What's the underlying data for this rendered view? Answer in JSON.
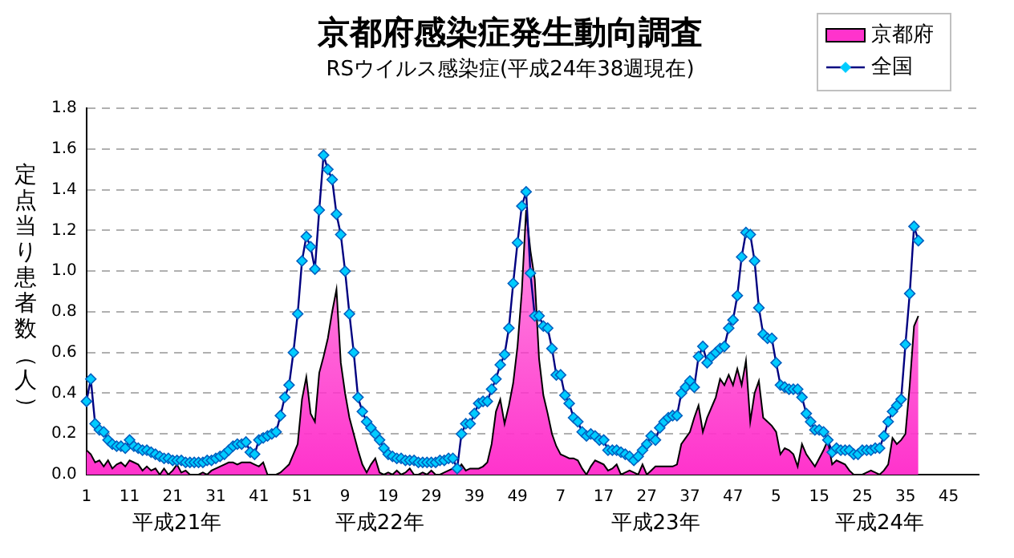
{
  "chart_data": {
    "type": "area",
    "title": "京都府感染症発生動向調査",
    "subtitle": "RSウイルス感染症(平成24年38週現在)",
    "ylabel": "定点当り患者数（人）",
    "categories": [
      "1",
      null,
      null,
      null,
      null,
      null,
      null,
      null,
      null,
      null,
      "11",
      null,
      null,
      null,
      null,
      null,
      null,
      null,
      null,
      null,
      "21",
      null,
      null,
      null,
      null,
      null,
      null,
      null,
      null,
      null,
      "31",
      null,
      null,
      null,
      null,
      null,
      null,
      null,
      null,
      null,
      "41",
      null,
      null,
      null,
      null,
      null,
      null,
      null,
      null,
      null,
      "51",
      null,
      null,
      null,
      null,
      null,
      null,
      null,
      null,
      null,
      "9",
      null,
      null,
      null,
      null,
      null,
      null,
      null,
      null,
      null,
      "19",
      null,
      null,
      null,
      null,
      null,
      null,
      null,
      null,
      null,
      "29",
      null,
      null,
      null,
      null,
      null,
      null,
      null,
      null,
      null,
      "39",
      null,
      null,
      null,
      null,
      null,
      null,
      null,
      null,
      null,
      "49",
      null,
      null,
      null,
      null,
      null,
      null,
      null,
      null,
      null,
      "7",
      null,
      null,
      null,
      null,
      null,
      null,
      null,
      null,
      null,
      "17",
      null,
      null,
      null,
      null,
      null,
      null,
      null,
      null,
      null,
      "27",
      null,
      null,
      null,
      null,
      null,
      null,
      null,
      null,
      null,
      "37",
      null,
      null,
      null,
      null,
      null,
      null,
      null,
      null,
      null,
      "47",
      null,
      null,
      null,
      null,
      null,
      null,
      null,
      null,
      null,
      "5",
      null,
      null,
      null,
      null,
      null,
      null,
      null,
      null,
      null,
      "15",
      null,
      null,
      null,
      null,
      null,
      null,
      null,
      null,
      null,
      "25",
      null,
      null,
      null,
      null,
      null,
      null,
      null,
      null,
      null,
      "35",
      null,
      null,
      null,
      null,
      null,
      null,
      null,
      null,
      null,
      "45",
      null,
      null,
      null,
      null,
      null,
      null,
      null
    ],
    "series": [
      {
        "name": "京都府",
        "color": "#ff33cc",
        "values": [
          0.12,
          0.1,
          0.06,
          0.07,
          0.04,
          0.07,
          0.03,
          0.05,
          0.06,
          0.04,
          0.07,
          0.06,
          0.05,
          0.02,
          0.04,
          0.02,
          0.03,
          0.0,
          0.03,
          0.0,
          0.02,
          0.05,
          0.01,
          0.02,
          0.0,
          0.0,
          0.0,
          0.01,
          0.0,
          0.02,
          0.03,
          0.04,
          0.05,
          0.06,
          0.06,
          0.05,
          0.06,
          0.06,
          0.06,
          0.05,
          0.04,
          0.06,
          0.0,
          0.0,
          0.0,
          0.01,
          0.03,
          0.05,
          0.1,
          0.15,
          0.37,
          0.48,
          0.3,
          0.26,
          0.5,
          0.58,
          0.67,
          0.8,
          0.91,
          0.55,
          0.4,
          0.28,
          0.2,
          0.12,
          0.05,
          0.01,
          0.05,
          0.08,
          0.01,
          0.0,
          0.01,
          0.0,
          0.02,
          0.0,
          0.01,
          0.03,
          0.0,
          0.0,
          0.01,
          0.0,
          0.02,
          0.0,
          0.0,
          0.01,
          0.02,
          0.03,
          0.02,
          0.05,
          0.02,
          0.03,
          0.03,
          0.03,
          0.04,
          0.06,
          0.15,
          0.31,
          0.37,
          0.25,
          0.34,
          0.45,
          0.63,
          0.9,
          1.3,
          1.1,
          0.96,
          0.57,
          0.39,
          0.3,
          0.2,
          0.14,
          0.1,
          0.09,
          0.08,
          0.08,
          0.07,
          0.03,
          0.0,
          0.04,
          0.07,
          0.06,
          0.05,
          0.02,
          0.03,
          0.05,
          0.0,
          0.01,
          0.02,
          0.01,
          0.0,
          0.05,
          0.0,
          0.02,
          0.04,
          0.04,
          0.04,
          0.04,
          0.04,
          0.05,
          0.15,
          0.18,
          0.21,
          0.28,
          0.34,
          0.21,
          0.28,
          0.33,
          0.38,
          0.47,
          0.44,
          0.49,
          0.44,
          0.52,
          0.44,
          0.56,
          0.26,
          0.4,
          0.46,
          0.28,
          0.26,
          0.24,
          0.21,
          0.1,
          0.13,
          0.12,
          0.1,
          0.04,
          0.15,
          0.1,
          0.07,
          0.04,
          0.08,
          0.12,
          0.17,
          0.05,
          0.07,
          0.06,
          0.05,
          0.02,
          0.0,
          0.0,
          0.0,
          0.01,
          0.02,
          0.01,
          0.0,
          0.02,
          0.05,
          0.18,
          0.15,
          0.17,
          0.2,
          0.44,
          0.73,
          0.78,
          null,
          null,
          null,
          null,
          null,
          null,
          null,
          null,
          null,
          null,
          null,
          null,
          null,
          null
        ]
      },
      {
        "name": "全国",
        "type": "line",
        "marker": "diamond",
        "color": "#00ccff",
        "values": [
          0.36,
          0.47,
          0.25,
          0.22,
          0.21,
          0.17,
          0.15,
          0.14,
          0.14,
          0.13,
          0.17,
          0.14,
          0.13,
          0.12,
          0.12,
          0.11,
          0.1,
          0.09,
          0.08,
          0.08,
          0.07,
          0.07,
          0.07,
          0.06,
          0.06,
          0.06,
          0.06,
          0.06,
          0.07,
          0.07,
          0.08,
          0.09,
          0.1,
          0.12,
          0.14,
          0.15,
          0.15,
          0.16,
          0.11,
          0.1,
          0.17,
          0.18,
          0.19,
          0.2,
          0.21,
          0.29,
          0.38,
          0.44,
          0.6,
          0.79,
          1.05,
          1.17,
          1.12,
          1.01,
          1.3,
          1.57,
          1.5,
          1.45,
          1.28,
          1.18,
          1.0,
          0.79,
          0.6,
          0.38,
          0.31,
          0.26,
          0.23,
          0.2,
          0.17,
          0.13,
          0.1,
          0.09,
          0.08,
          0.08,
          0.07,
          0.07,
          0.07,
          0.06,
          0.06,
          0.06,
          0.06,
          0.06,
          0.07,
          0.07,
          0.08,
          0.08,
          0.03,
          0.2,
          0.25,
          0.25,
          0.3,
          0.35,
          0.36,
          0.36,
          0.42,
          0.47,
          0.54,
          0.59,
          0.72,
          0.94,
          1.14,
          1.32,
          1.39,
          0.99,
          0.78,
          0.78,
          0.73,
          0.72,
          0.62,
          0.49,
          0.49,
          0.39,
          0.35,
          0.28,
          0.26,
          0.21,
          0.19,
          0.2,
          0.19,
          0.17,
          0.17,
          0.12,
          0.12,
          0.12,
          0.11,
          0.1,
          0.09,
          0.07,
          0.09,
          0.12,
          0.15,
          0.19,
          0.17,
          0.23,
          0.26,
          0.28,
          0.29,
          0.29,
          0.4,
          0.43,
          0.46,
          0.43,
          0.58,
          0.63,
          0.55,
          0.58,
          0.6,
          0.62,
          0.63,
          0.72,
          0.76,
          0.88,
          1.07,
          1.19,
          1.18,
          1.05,
          0.82,
          0.69,
          0.67,
          0.67,
          0.55,
          0.44,
          0.43,
          0.42,
          0.42,
          0.42,
          0.38,
          0.3,
          0.26,
          0.22,
          0.22,
          0.21,
          0.17,
          0.11,
          0.13,
          0.12,
          0.12,
          0.12,
          0.1,
          0.1,
          0.12,
          0.12,
          0.12,
          0.13,
          0.13,
          0.19,
          0.26,
          0.31,
          0.34,
          0.37,
          0.64,
          0.89,
          1.22,
          1.15,
          null,
          null,
          null,
          null,
          null,
          null,
          null,
          null,
          null,
          null,
          null,
          null,
          null,
          null
        ]
      }
    ],
    "ylim": [
      0,
      1.8
    ],
    "yticks": [
      {
        "value": 0,
        "label": "0.0"
      },
      {
        "value": 0.2,
        "label": "0.2"
      },
      {
        "value": 0.4,
        "label": "0.4"
      },
      {
        "value": 0.6,
        "label": "0.6"
      },
      {
        "value": 0.8,
        "label": "0.8"
      },
      {
        "value": 1,
        "label": "1.0"
      },
      {
        "value": 1.2,
        "label": "1.2"
      },
      {
        "value": 1.4,
        "label": "1.4"
      },
      {
        "value": 1.6,
        "label": "1.6"
      },
      {
        "value": 1.8,
        "label": "1.8"
      }
    ],
    "grid": "y",
    "legend": "top right",
    "annotations": [
      "平成21年",
      "平成22年",
      "平成23年",
      "平成24年"
    ]
  }
}
